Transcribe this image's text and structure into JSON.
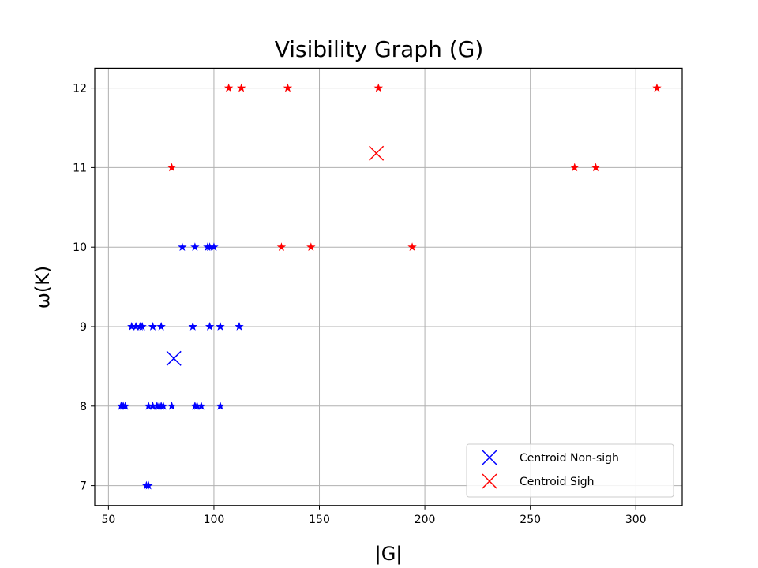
{
  "chart_data": {
    "type": "scatter",
    "title": "Visibility Graph (G)",
    "xlabel": "|G|",
    "ylabel": "ω(K)",
    "xlim": [
      43.5,
      322
    ],
    "ylim": [
      6.75,
      12.25
    ],
    "xticks": [
      50,
      100,
      150,
      200,
      250,
      300
    ],
    "yticks": [
      7,
      8,
      9,
      10,
      11,
      12
    ],
    "grid": true,
    "legend_position": "lower-right",
    "series": [
      {
        "marker": "star",
        "color": "#0000ff",
        "points": [
          [
            56,
            8
          ],
          [
            57,
            8
          ],
          [
            58,
            8
          ],
          [
            69,
            8
          ],
          [
            71,
            8
          ],
          [
            73,
            8
          ],
          [
            74,
            8
          ],
          [
            75,
            8
          ],
          [
            76,
            8
          ],
          [
            80,
            8
          ],
          [
            91,
            8
          ],
          [
            92,
            8
          ],
          [
            94,
            8
          ],
          [
            103,
            8
          ],
          [
            61,
            9
          ],
          [
            63,
            9
          ],
          [
            65,
            9
          ],
          [
            66,
            9
          ],
          [
            71,
            9
          ],
          [
            75,
            9
          ],
          [
            90,
            9
          ],
          [
            98,
            9
          ],
          [
            103,
            9
          ],
          [
            112,
            9
          ],
          [
            85,
            10
          ],
          [
            91,
            10
          ],
          [
            97,
            10
          ],
          [
            98,
            10
          ],
          [
            100,
            10
          ],
          [
            68,
            7
          ],
          [
            69,
            7
          ]
        ]
      },
      {
        "marker": "star",
        "color": "#ff0000",
        "points": [
          [
            107,
            12
          ],
          [
            113,
            12
          ],
          [
            135,
            12
          ],
          [
            178,
            12
          ],
          [
            310,
            12
          ],
          [
            80,
            11
          ],
          [
            271,
            11
          ],
          [
            281,
            11
          ],
          [
            132,
            10
          ],
          [
            146,
            10
          ],
          [
            194,
            10
          ]
        ]
      },
      {
        "name": "Centroid Non-sigh",
        "marker": "x",
        "color": "#0000ff",
        "points": [
          [
            81,
            8.6
          ]
        ]
      },
      {
        "name": "Centroid Sigh",
        "marker": "x",
        "color": "#ff0000",
        "points": [
          [
            177,
            11.18
          ]
        ]
      }
    ]
  }
}
